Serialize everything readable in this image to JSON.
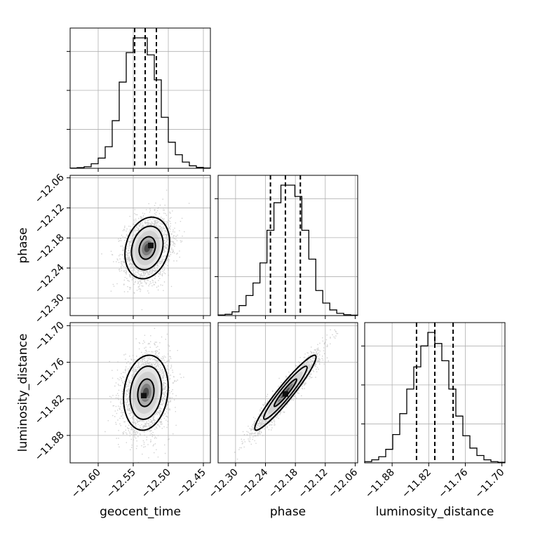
{
  "chart_data": {
    "type": "corner",
    "parameters": [
      {
        "name": "geocent_time",
        "label": "geocent_time",
        "range": [
          -12.64,
          -12.44
        ],
        "ticks": [
          -12.6,
          -12.55,
          -12.5,
          -12.45
        ],
        "tick_labels": [
          "−12.60",
          "−12.55",
          "−12.50",
          "−12.45"
        ],
        "median": -12.533,
        "quantile_16": -12.548,
        "quantile_84": -12.517,
        "histogram": {
          "edges_start": -12.64,
          "bin_width": 0.01,
          "counts": [
            2,
            6,
            14,
            40,
            90,
            190,
            420,
            760,
            1020,
            1150,
            1150,
            1000,
            780,
            450,
            230,
            120,
            55,
            22,
            8,
            3
          ]
        }
      },
      {
        "name": "phase",
        "label": "phase",
        "range": [
          -12.335,
          -12.055
        ],
        "ticks": [
          -12.3,
          -12.24,
          -12.18,
          -12.12,
          -12.06
        ],
        "tick_labels": [
          "−12.30",
          "−12.24",
          "−12.18",
          "−12.12",
          "−12.06"
        ],
        "median": -12.2,
        "quantile_16": -12.23,
        "quantile_84": -12.17,
        "histogram": {
          "edges_start": -12.335,
          "bin_width": 0.014,
          "counts": [
            5,
            10,
            30,
            80,
            160,
            260,
            420,
            680,
            900,
            1040,
            1040,
            950,
            680,
            450,
            200,
            100,
            45,
            18,
            7,
            3
          ]
        }
      },
      {
        "name": "luminosity_distance",
        "label": "luminosity_distance",
        "range": [
          -11.925,
          -11.695
        ],
        "ticks": [
          -11.88,
          -11.82,
          -11.76,
          -11.7
        ],
        "tick_labels": [
          "−11.88",
          "−11.82",
          "−11.76",
          "−11.70"
        ],
        "median": -11.81,
        "quantile_16": -11.84,
        "quantile_84": -11.78,
        "histogram": {
          "edges_start": -11.925,
          "bin_width": 0.0115,
          "counts": [
            10,
            25,
            50,
            110,
            230,
            400,
            600,
            780,
            950,
            1060,
            970,
            830,
            600,
            380,
            220,
            120,
            60,
            25,
            10,
            5
          ]
        }
      }
    ],
    "pairs": [
      {
        "x_param": "geocent_time",
        "y_param": "phase",
        "correlation": 0.2,
        "center": [
          -12.53,
          -12.2
        ],
        "peak": [
          -12.525,
          -12.195
        ]
      },
      {
        "x_param": "geocent_time",
        "y_param": "luminosity_distance",
        "correlation": 0.15,
        "center": [
          -12.532,
          -11.81
        ],
        "peak": [
          -12.535,
          -11.815
        ]
      },
      {
        "x_param": "phase",
        "y_param": "luminosity_distance",
        "correlation": 0.95,
        "center": [
          -12.2,
          -11.81
        ],
        "peak": [
          -12.2,
          -11.812
        ]
      }
    ],
    "grid": true,
    "contour_levels": 3
  }
}
